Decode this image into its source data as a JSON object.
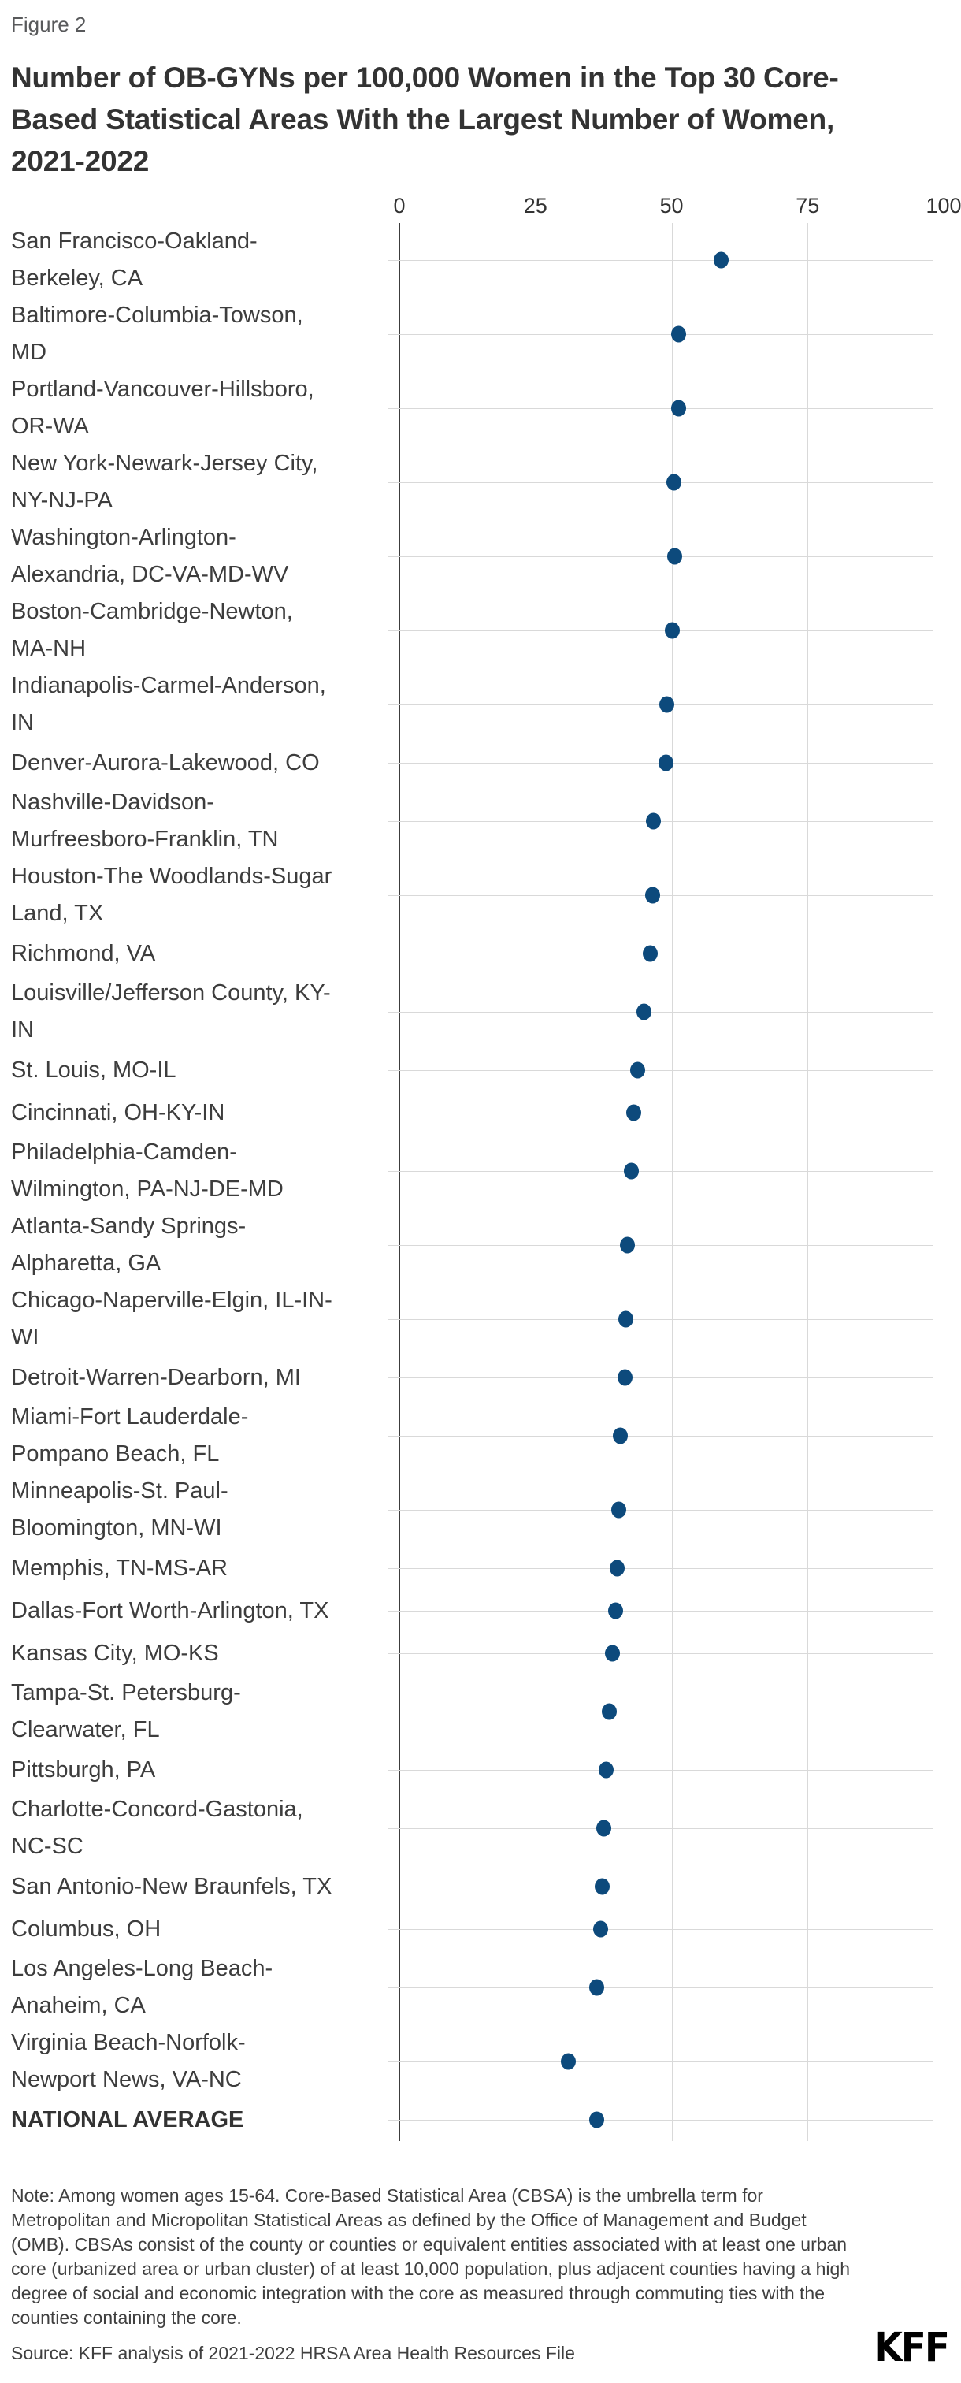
{
  "figure_label": "Figure 2",
  "header": {
    "title_lines": [
      "Number of OB-GYNs per 100,000 Women in the Top 30 Core-",
      "Based Statistical Areas With the Largest Number of Women,",
      "2021-2022"
    ]
  },
  "colors": {
    "dot": "#0d4a7c",
    "gridline": "#d9d9d9",
    "axis_line": "#3c3c3c",
    "title_text": "#333333",
    "body_text": "#3f3f3f",
    "logo_text": "#000000"
  },
  "chart_data": {
    "type": "scatter",
    "variant": "dot-plot",
    "title": "Number of OB-GYNs per 100,000 Women in the Top 30 Core-Based Statistical Areas With the Largest Number of Women, 2021-2022",
    "xlabel": "",
    "ylabel": "",
    "xlim": [
      0,
      100
    ],
    "x_ticks": [
      0,
      25,
      50,
      75,
      100
    ],
    "grid": true,
    "legend": "none",
    "rows": [
      {
        "label": "San Francisco-Oakland-Berkeley, CA",
        "label_lines": [
          "San Francisco-Oakland-",
          "Berkeley, CA"
        ],
        "value": 61.1,
        "bold": false
      },
      {
        "label": "Baltimore-Columbia-Towson, MD",
        "label_lines": [
          "Baltimore-Columbia-Towson,",
          "MD"
        ],
        "value": 53.4,
        "bold": false
      },
      {
        "label": "Portland-Vancouver-Hillsboro, OR-WA",
        "label_lines": [
          "Portland-Vancouver-Hillsboro,",
          "OR-WA"
        ],
        "value": 53.3,
        "bold": false
      },
      {
        "label": "New York-Newark-Jersey City, NY-NJ-PA",
        "label_lines": [
          "New York-Newark-Jersey City,",
          "NY-NJ-PA"
        ],
        "value": 52.4,
        "bold": false
      },
      {
        "label": "Washington-Arlington-Alexandria, DC-VA-MD-WV",
        "label_lines": [
          "Washington-Arlington-",
          "Alexandria, DC-VA-MD-WV"
        ],
        "value": 52.6,
        "bold": false
      },
      {
        "label": "Boston-Cambridge-Newton, MA-NH",
        "label_lines": [
          "Boston-Cambridge-Newton,",
          "MA-NH"
        ],
        "value": 52.2,
        "bold": false
      },
      {
        "label": "Indianapolis-Carmel-Anderson, IN",
        "label_lines": [
          "Indianapolis-Carmel-Anderson,",
          "IN"
        ],
        "value": 51.1,
        "bold": false
      },
      {
        "label": "Denver-Aurora-Lakewood, CO",
        "label_lines": [
          "Denver-Aurora-Lakewood, CO"
        ],
        "value": 51.0,
        "bold": false
      },
      {
        "label": "Nashville-Davidson-Murfreesboro-Franklin, TN",
        "label_lines": [
          "Nashville-Davidson-",
          "Murfreesboro-Franklin, TN"
        ],
        "value": 48.7,
        "bold": false
      },
      {
        "label": "Houston-The Woodlands-Sugar Land, TX",
        "label_lines": [
          "Houston-The Woodlands-Sugar",
          "Land, TX"
        ],
        "value": 48.6,
        "bold": false
      },
      {
        "label": "Richmond, VA",
        "label_lines": [
          "Richmond, VA"
        ],
        "value": 48.1,
        "bold": false
      },
      {
        "label": "Louisville/Jefferson County, KY-IN",
        "label_lines": [
          "Louisville/Jefferson County, KY-",
          "IN"
        ],
        "value": 47.0,
        "bold": false
      },
      {
        "label": "St. Louis, MO-IL",
        "label_lines": [
          "St. Louis, MO-IL"
        ],
        "value": 45.8,
        "bold": false
      },
      {
        "label": "Cincinnati, OH-KY-IN",
        "label_lines": [
          "Cincinnati, OH-KY-IN"
        ],
        "value": 45.1,
        "bold": false
      },
      {
        "label": "Philadelphia-Camden-Wilmington, PA-NJ-DE-MD",
        "label_lines": [
          "Philadelphia-Camden-",
          "Wilmington, PA-NJ-DE-MD"
        ],
        "value": 44.6,
        "bold": false
      },
      {
        "label": "Atlanta-Sandy Springs-Alpharetta, GA",
        "label_lines": [
          "Atlanta-Sandy Springs-",
          "Alpharetta, GA"
        ],
        "value": 43.9,
        "bold": false
      },
      {
        "label": "Chicago-Naperville-Elgin, IL-IN-WI",
        "label_lines": [
          "Chicago-Naperville-Elgin, IL-IN-",
          "WI"
        ],
        "value": 43.7,
        "bold": false
      },
      {
        "label": "Detroit-Warren-Dearborn, MI",
        "label_lines": [
          "Detroit-Warren-Dearborn, MI"
        ],
        "value": 43.5,
        "bold": false
      },
      {
        "label": "Miami-Fort Lauderdale-Pompano Beach, FL",
        "label_lines": [
          "Miami-Fort Lauderdale-",
          "Pompano Beach, FL"
        ],
        "value": 42.6,
        "bold": false
      },
      {
        "label": "Minneapolis-St. Paul-Bloomington, MN-WI",
        "label_lines": [
          "Minneapolis-St. Paul-",
          "Bloomington, MN-WI"
        ],
        "value": 42.3,
        "bold": false
      },
      {
        "label": "Memphis, TN-MS-AR",
        "label_lines": [
          "Memphis, TN-MS-AR"
        ],
        "value": 42.0,
        "bold": false
      },
      {
        "label": "Dallas-Fort Worth-Arlington, TX",
        "label_lines": [
          "Dallas-Fort Worth-Arlington, TX"
        ],
        "value": 41.7,
        "bold": false
      },
      {
        "label": "Kansas City, MO-KS",
        "label_lines": [
          "Kansas City, MO-KS"
        ],
        "value": 41.1,
        "bold": false
      },
      {
        "label": "Tampa-St. Petersburg-Clearwater, FL",
        "label_lines": [
          "Tampa-St. Petersburg-",
          "Clearwater, FL"
        ],
        "value": 40.6,
        "bold": false
      },
      {
        "label": "Pittsburgh, PA",
        "label_lines": [
          "Pittsburgh, PA"
        ],
        "value": 40.0,
        "bold": false
      },
      {
        "label": "Charlotte-Concord-Gastonia, NC-SC",
        "label_lines": [
          "Charlotte-Concord-Gastonia,",
          "NC-SC"
        ],
        "value": 39.6,
        "bold": false
      },
      {
        "label": "San Antonio-New Braunfels, TX",
        "label_lines": [
          "San Antonio-New Braunfels, TX"
        ],
        "value": 39.3,
        "bold": false
      },
      {
        "label": "Columbus, OH",
        "label_lines": [
          "Columbus, OH"
        ],
        "value": 39.0,
        "bold": false
      },
      {
        "label": "Los Angeles-Long Beach-Anaheim, CA",
        "label_lines": [
          "Los Angeles-Long Beach-",
          "Anaheim, CA"
        ],
        "value": 38.3,
        "bold": false
      },
      {
        "label": "Virginia Beach-Norfolk-Newport News, VA-NC",
        "label_lines": [
          "Virginia Beach-Norfolk-",
          "Newport News, VA-NC"
        ],
        "value": 33.1,
        "bold": false
      },
      {
        "label": "NATIONAL AVERAGE",
        "label_lines": [
          "NATIONAL AVERAGE"
        ],
        "value": 38.3,
        "bold": true
      }
    ]
  },
  "footer": {
    "note": "Note: Among women ages 15-64. Core-Based Statistical Area (CBSA) is the umbrella term for Metropolitan and Micropolitan Statistical Areas as defined by the Office of Management and Budget (OMB). CBSAs consist of the county or counties or equivalent entities associated with at least one urban core (urbanized area or urban cluster) of at least 10,000 population, plus adjacent counties having a high degree of social and economic integration with the core as measured through commuting ties with the counties containing the core.",
    "source": "Source: KFF analysis of 2021-2022 HRSA Area Health Resources File",
    "logo": "KFF"
  }
}
